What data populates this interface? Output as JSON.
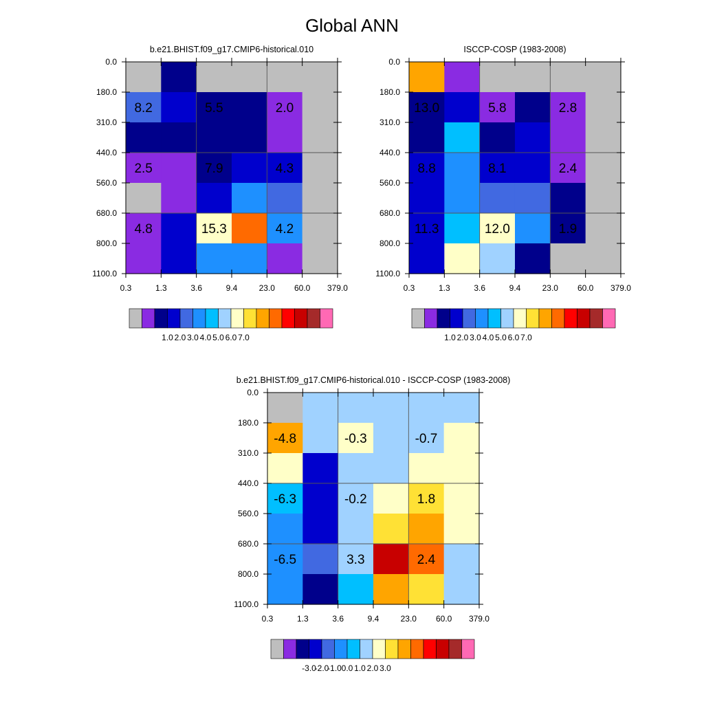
{
  "page_title": "Global ANN",
  "colors": {
    "missing": "#bebebe",
    "palette": [
      "#8a2be2",
      "#00008b",
      "#0000cd",
      "#4169e1",
      "#1e90ff",
      "#00bfff",
      "#a0d2ff",
      "#ffffc8",
      "#ffe135",
      "#ffa500",
      "#ff6a00",
      "#ff0000",
      "#c80000",
      "#a52a2a",
      "#ff69b4"
    ],
    "grid_line": "#555555"
  },
  "chart_data": [
    {
      "type": "heatmap",
      "title": "b.e21.BHIST.f09_g17.CMIP6-historical.010",
      "xlabel": "",
      "ylabel": "",
      "x_ticks": [
        "0.3",
        "1.3",
        "3.6",
        "9.4",
        "23.0",
        "60.0",
        "379.0"
      ],
      "y_ticks": [
        "0.0",
        "180.0",
        "310.0",
        "440.0",
        "560.0",
        "680.0",
        "800.0",
        "1100.0"
      ],
      "cells": [
        [
          -1,
          1,
          -1,
          -1,
          -1,
          -1
        ],
        [
          3,
          2,
          1,
          1,
          0,
          -1
        ],
        [
          1,
          1,
          1,
          1,
          0,
          -1
        ],
        [
          0,
          0,
          1,
          2,
          2,
          -1
        ],
        [
          -1,
          0,
          2,
          4,
          3,
          -1
        ],
        [
          0,
          2,
          7,
          10,
          4,
          -1
        ],
        [
          0,
          2,
          4,
          4,
          0,
          -1
        ]
      ],
      "labels": [
        {
          "col": 0.5,
          "row": 1.5,
          "text": "8.2"
        },
        {
          "col": 2.5,
          "row": 1.5,
          "text": "5.5"
        },
        {
          "col": 4.5,
          "row": 1.5,
          "text": "2.0"
        },
        {
          "col": 0.5,
          "row": 3.5,
          "text": "2.5"
        },
        {
          "col": 2.5,
          "row": 3.5,
          "text": "7.9"
        },
        {
          "col": 4.5,
          "row": 3.5,
          "text": "4.3"
        },
        {
          "col": 0.5,
          "row": 5.5,
          "text": "4.8"
        },
        {
          "col": 2.5,
          "row": 5.5,
          "text": "15.3"
        },
        {
          "col": 4.5,
          "row": 5.5,
          "text": "4.2"
        }
      ],
      "colorbar": {
        "ticks": [
          "1.0",
          "2.0",
          "3.0",
          "4.0",
          "5.0",
          "6.0",
          "7.0"
        ]
      }
    },
    {
      "type": "heatmap",
      "title": "ISCCP-COSP (1983-2008)",
      "xlabel": "",
      "ylabel": "",
      "x_ticks": [
        "0.3",
        "1.3",
        "3.6",
        "9.4",
        "23.0",
        "60.0",
        "379.0"
      ],
      "y_ticks": [
        "0.0",
        "180.0",
        "310.0",
        "440.0",
        "560.0",
        "680.0",
        "800.0",
        "1100.0"
      ],
      "cells": [
        [
          9,
          0,
          -1,
          -1,
          -1,
          -1
        ],
        [
          1,
          2,
          0,
          1,
          0,
          -1
        ],
        [
          1,
          5,
          1,
          2,
          0,
          -1
        ],
        [
          2,
          4,
          2,
          2,
          0,
          -1
        ],
        [
          2,
          4,
          3,
          3,
          1,
          -1
        ],
        [
          2,
          5,
          7,
          4,
          1,
          -1
        ],
        [
          2,
          7,
          6,
          1,
          -1,
          -1
        ]
      ],
      "labels": [
        {
          "col": 0.5,
          "row": 1.5,
          "text": "13.0"
        },
        {
          "col": 2.5,
          "row": 1.5,
          "text": "5.8"
        },
        {
          "col": 4.5,
          "row": 1.5,
          "text": "2.8"
        },
        {
          "col": 0.5,
          "row": 3.5,
          "text": "8.8"
        },
        {
          "col": 2.5,
          "row": 3.5,
          "text": "8.1"
        },
        {
          "col": 4.5,
          "row": 3.5,
          "text": "2.4"
        },
        {
          "col": 0.5,
          "row": 5.5,
          "text": "11.3"
        },
        {
          "col": 2.5,
          "row": 5.5,
          "text": "12.0"
        },
        {
          "col": 4.5,
          "row": 5.5,
          "text": "1.9"
        }
      ],
      "colorbar": {
        "ticks": [
          "1.0",
          "2.0",
          "3.0",
          "4.0",
          "5.0",
          "6.0",
          "7.0"
        ]
      }
    },
    {
      "type": "heatmap",
      "title": "b.e21.BHIST.f09_g17.CMIP6-historical.010 - ISCCP-COSP (1983-2008)",
      "xlabel": "",
      "ylabel": "",
      "x_ticks": [
        "0.3",
        "1.3",
        "3.6",
        "9.4",
        "23.0",
        "60.0",
        "379.0"
      ],
      "y_ticks": [
        "0.0",
        "180.0",
        "310.0",
        "440.0",
        "560.0",
        "680.0",
        "800.0",
        "1100.0"
      ],
      "cells": [
        [
          -1,
          6,
          6,
          6,
          6,
          6
        ],
        [
          9,
          6,
          7,
          6,
          6,
          7
        ],
        [
          7,
          2,
          6,
          6,
          7,
          7
        ],
        [
          5,
          2,
          6,
          7,
          8,
          7
        ],
        [
          4,
          2,
          6,
          8,
          9,
          7
        ],
        [
          4,
          3,
          6,
          12,
          10,
          6
        ],
        [
          4,
          1,
          5,
          9,
          8,
          6
        ]
      ],
      "labels": [
        {
          "col": 0.5,
          "row": 1.5,
          "text": "-4.8"
        },
        {
          "col": 2.5,
          "row": 1.5,
          "text": "-0.3"
        },
        {
          "col": 4.5,
          "row": 1.5,
          "text": "-0.7"
        },
        {
          "col": 0.5,
          "row": 3.5,
          "text": "-6.3"
        },
        {
          "col": 2.5,
          "row": 3.5,
          "text": "-0.2"
        },
        {
          "col": 4.5,
          "row": 3.5,
          "text": "1.8"
        },
        {
          "col": 0.5,
          "row": 5.5,
          "text": "-6.5"
        },
        {
          "col": 2.5,
          "row": 5.5,
          "text": "3.3"
        },
        {
          "col": 4.5,
          "row": 5.5,
          "text": "2.4"
        }
      ],
      "colorbar": {
        "ticks": [
          "-3.0",
          "-2.0",
          "-1.0",
          "0.0",
          "1.0",
          "2.0",
          "3.0"
        ]
      }
    }
  ]
}
